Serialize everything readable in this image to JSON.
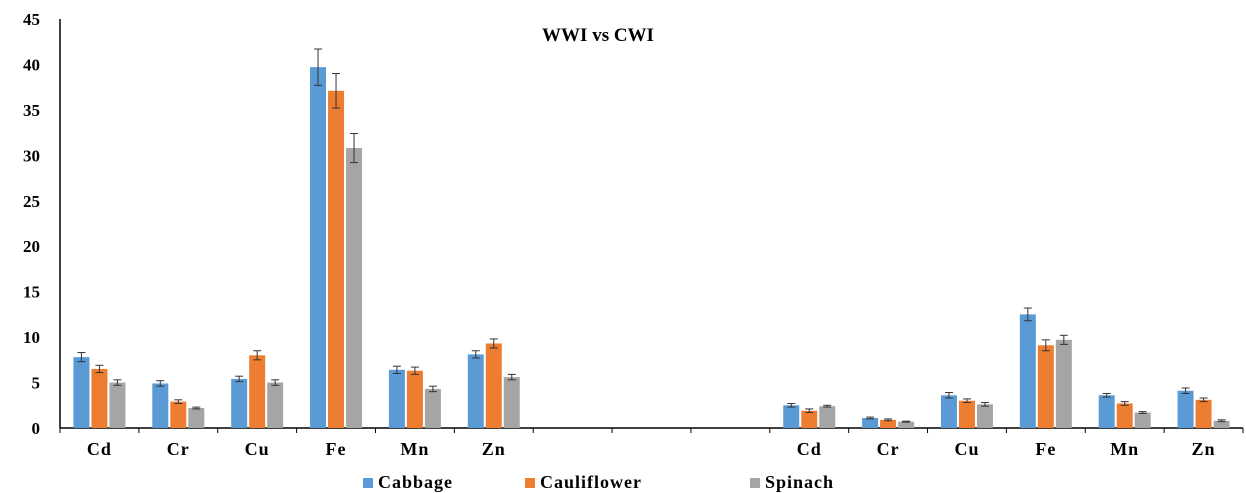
{
  "chart_data": {
    "type": "bar",
    "title": "WWI vs CWI",
    "xlabel": "",
    "ylabel": "",
    "ylim": [
      0,
      45
    ],
    "yticks": [
      0,
      5,
      10,
      15,
      20,
      25,
      30,
      35,
      40,
      45
    ],
    "grid": false,
    "legend_position": "bottom",
    "groups": [
      {
        "categories": [
          "Cd",
          "Cr",
          "Cu",
          "Fe",
          "Mn",
          "Zn"
        ],
        "series": [
          {
            "name": "Cabbage",
            "values": [
              7.8,
              4.9,
              5.4,
              39.7,
              6.4,
              8.1
            ],
            "errors": [
              0.5,
              0.3,
              0.3,
              2.0,
              0.4,
              0.4
            ]
          },
          {
            "name": "Cauliflower",
            "values": [
              6.5,
              2.9,
              8.0,
              37.1,
              6.3,
              9.3
            ],
            "errors": [
              0.4,
              0.2,
              0.5,
              1.9,
              0.4,
              0.5
            ]
          },
          {
            "name": "Spinach",
            "values": [
              5.0,
              2.2,
              5.0,
              30.8,
              4.3,
              5.6
            ],
            "errors": [
              0.3,
              0.1,
              0.3,
              1.6,
              0.3,
              0.3
            ]
          }
        ]
      },
      {
        "categories": [
          "Cd",
          "Cr",
          "Cu",
          "Fe",
          "Mn",
          "Zn"
        ],
        "series": [
          {
            "name": "Cabbage",
            "values": [
              2.5,
              1.1,
              3.6,
              12.5,
              3.6,
              4.1
            ],
            "errors": [
              0.2,
              0.1,
              0.3,
              0.7,
              0.2,
              0.3
            ]
          },
          {
            "name": "Cauliflower",
            "values": [
              1.9,
              0.9,
              3.0,
              9.1,
              2.7,
              3.1
            ],
            "errors": [
              0.2,
              0.1,
              0.2,
              0.6,
              0.2,
              0.2
            ]
          },
          {
            "name": "Spinach",
            "values": [
              2.4,
              0.7,
              2.6,
              9.7,
              1.7,
              0.8
            ],
            "errors": [
              0.1,
              0.05,
              0.2,
              0.5,
              0.1,
              0.1
            ]
          }
        ]
      }
    ],
    "legend": [
      "Cabbage",
      "Cauliflower",
      "Spinach"
    ],
    "colors": {
      "Cabbage": "#5b9bd5",
      "Cauliflower": "#ed7d31",
      "Spinach": "#a5a5a5"
    }
  }
}
